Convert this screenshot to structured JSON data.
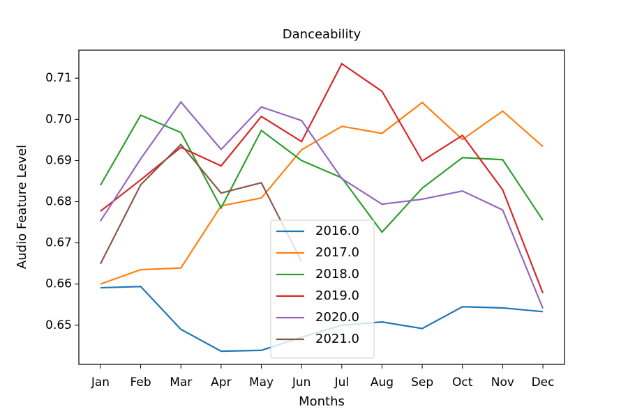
{
  "chart_data": {
    "type": "line",
    "title": "Danceability",
    "x_label": "Months",
    "y_label": "Audio Feature Level",
    "categories": [
      "Jan",
      "Feb",
      "Mar",
      "Apr",
      "May",
      "Jun",
      "Jul",
      "Aug",
      "Sep",
      "Oct",
      "Nov",
      "Dec"
    ],
    "series": [
      {
        "name": "2016.0",
        "color": "#1f77b4",
        "values": [
          0.6591,
          0.6594,
          0.649,
          0.6437,
          0.6439,
          0.6471,
          0.65,
          0.6508,
          0.6492,
          0.6545,
          0.6542,
          0.6533
        ]
      },
      {
        "name": "2017.0",
        "color": "#ff7f0e",
        "values": [
          0.66,
          0.6635,
          0.6639,
          0.679,
          0.6809,
          0.6926,
          0.6983,
          0.6966,
          0.7041,
          0.6951,
          0.702,
          0.6934
        ]
      },
      {
        "name": "2018.0",
        "color": "#2ca02c",
        "values": [
          0.684,
          0.701,
          0.6968,
          0.6785,
          0.6973,
          0.69,
          0.6858,
          0.6726,
          0.6833,
          0.6907,
          0.6902,
          0.6755
        ]
      },
      {
        "name": "2019.0",
        "color": "#d62728",
        "values": [
          0.6777,
          0.6853,
          0.6932,
          0.6887,
          0.7007,
          0.6946,
          0.7135,
          0.7068,
          0.6899,
          0.6961,
          0.6829,
          0.6578
        ]
      },
      {
        "name": "2020.0",
        "color": "#9467bd",
        "values": [
          0.6753,
          0.6904,
          0.7042,
          0.6927,
          0.703,
          0.6997,
          0.6856,
          0.6794,
          0.6806,
          0.6826,
          0.678,
          0.6541
        ]
      },
      {
        "name": "2021.0",
        "color": "#8c564b",
        "values": [
          0.6649,
          0.6841,
          0.6939,
          0.6821,
          0.6846,
          0.6655,
          null,
          null,
          null,
          null,
          null,
          null
        ]
      }
    ],
    "ylim": [
      0.6405,
      0.7168
    ],
    "yticks": [
      0.65,
      0.66,
      0.67,
      0.68,
      0.69,
      {
        "value": 0.7,
        "label": "0.70"
      },
      0.71
    ],
    "legend": "lower center"
  }
}
